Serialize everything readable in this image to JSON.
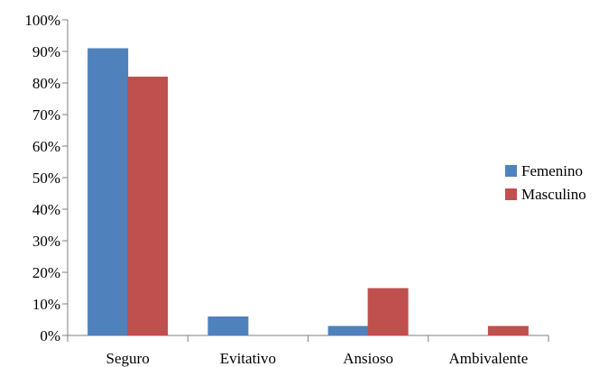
{
  "chart_data": {
    "type": "bar",
    "title": "",
    "xlabel": "",
    "ylabel": "",
    "categories": [
      "Seguro",
      "Evitativo",
      "Ansioso",
      "Ambivalente"
    ],
    "series": [
      {
        "name": "Femenino",
        "color": "#4f81bd",
        "values": [
          91,
          6,
          3,
          0
        ]
      },
      {
        "name": "Masculino",
        "color": "#c0504d",
        "values": [
          82,
          0,
          15,
          3
        ]
      }
    ],
    "ylim": [
      0,
      100
    ],
    "ytick_labels": [
      "0%",
      "10%",
      "20%",
      "30%",
      "40%",
      "50%",
      "60%",
      "70%",
      "80%",
      "90%",
      "100%"
    ],
    "grid": false,
    "legend_position": "right"
  }
}
